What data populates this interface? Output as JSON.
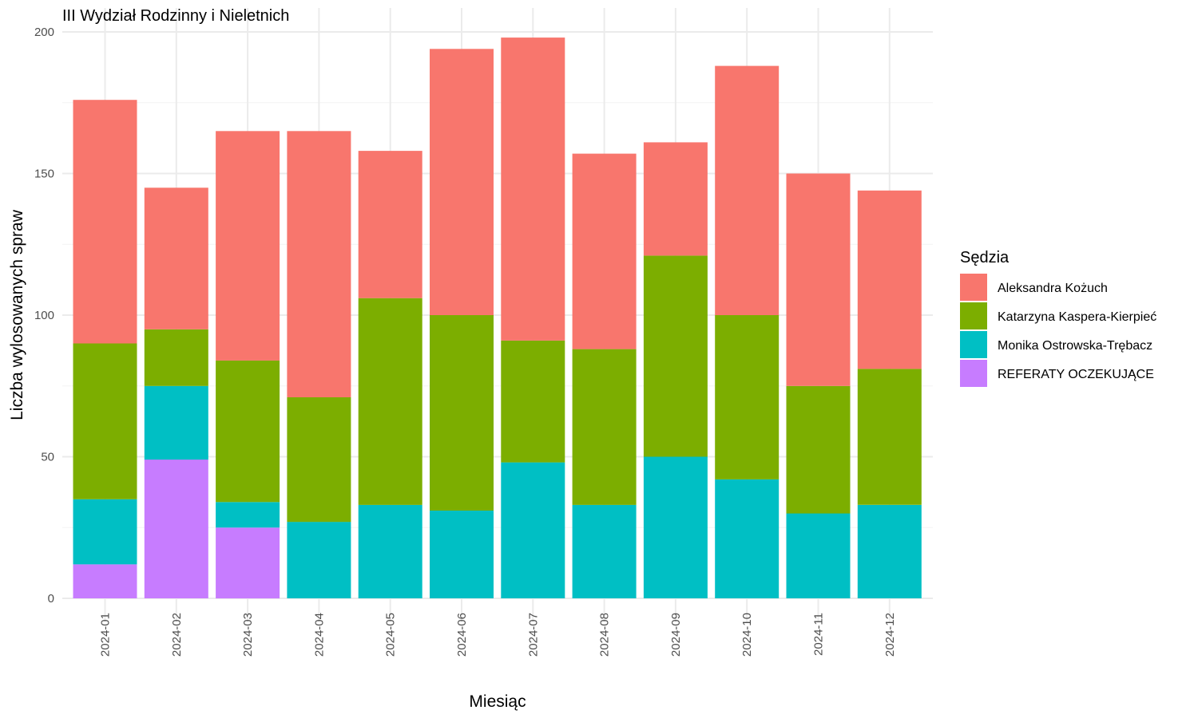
{
  "chart_data": {
    "type": "bar",
    "stacked": true,
    "title": "III Wydział Rodzinny i Nieletnich",
    "xlabel": "Miesiąc",
    "ylabel": "Liczba wylosowanych spraw",
    "ylim": [
      0,
      200
    ],
    "yticks": [
      "0",
      "50",
      "100",
      "150",
      "200"
    ],
    "grid": true,
    "legend_title": "Sędzia",
    "legend_position": "right",
    "categories": [
      "2024-01",
      "2024-02",
      "2024-03",
      "2024-04",
      "2024-05",
      "2024-06",
      "2024-07",
      "2024-08",
      "2024-09",
      "2024-10",
      "2024-11",
      "2024-12"
    ],
    "series": [
      {
        "name": "Aleksandra Kożuch",
        "color": "#F8766D",
        "values": [
          86,
          50,
          81,
          94,
          52,
          94,
          107,
          69,
          40,
          88,
          75,
          63
        ]
      },
      {
        "name": "Katarzyna Kaspera-Kierpieć",
        "color": "#7CAE00",
        "values": [
          55,
          20,
          50,
          44,
          73,
          69,
          43,
          55,
          71,
          58,
          45,
          48
        ]
      },
      {
        "name": "Monika Ostrowska-Trębacz",
        "color": "#00BFC4",
        "values": [
          23,
          26,
          9,
          27,
          33,
          31,
          48,
          33,
          50,
          42,
          30,
          33
        ]
      },
      {
        "name": "REFERATY OCZEKUJĄCE",
        "color": "#C77CFF",
        "values": [
          12,
          49,
          25,
          0,
          0,
          0,
          0,
          0,
          0,
          0,
          0,
          0
        ]
      }
    ]
  }
}
